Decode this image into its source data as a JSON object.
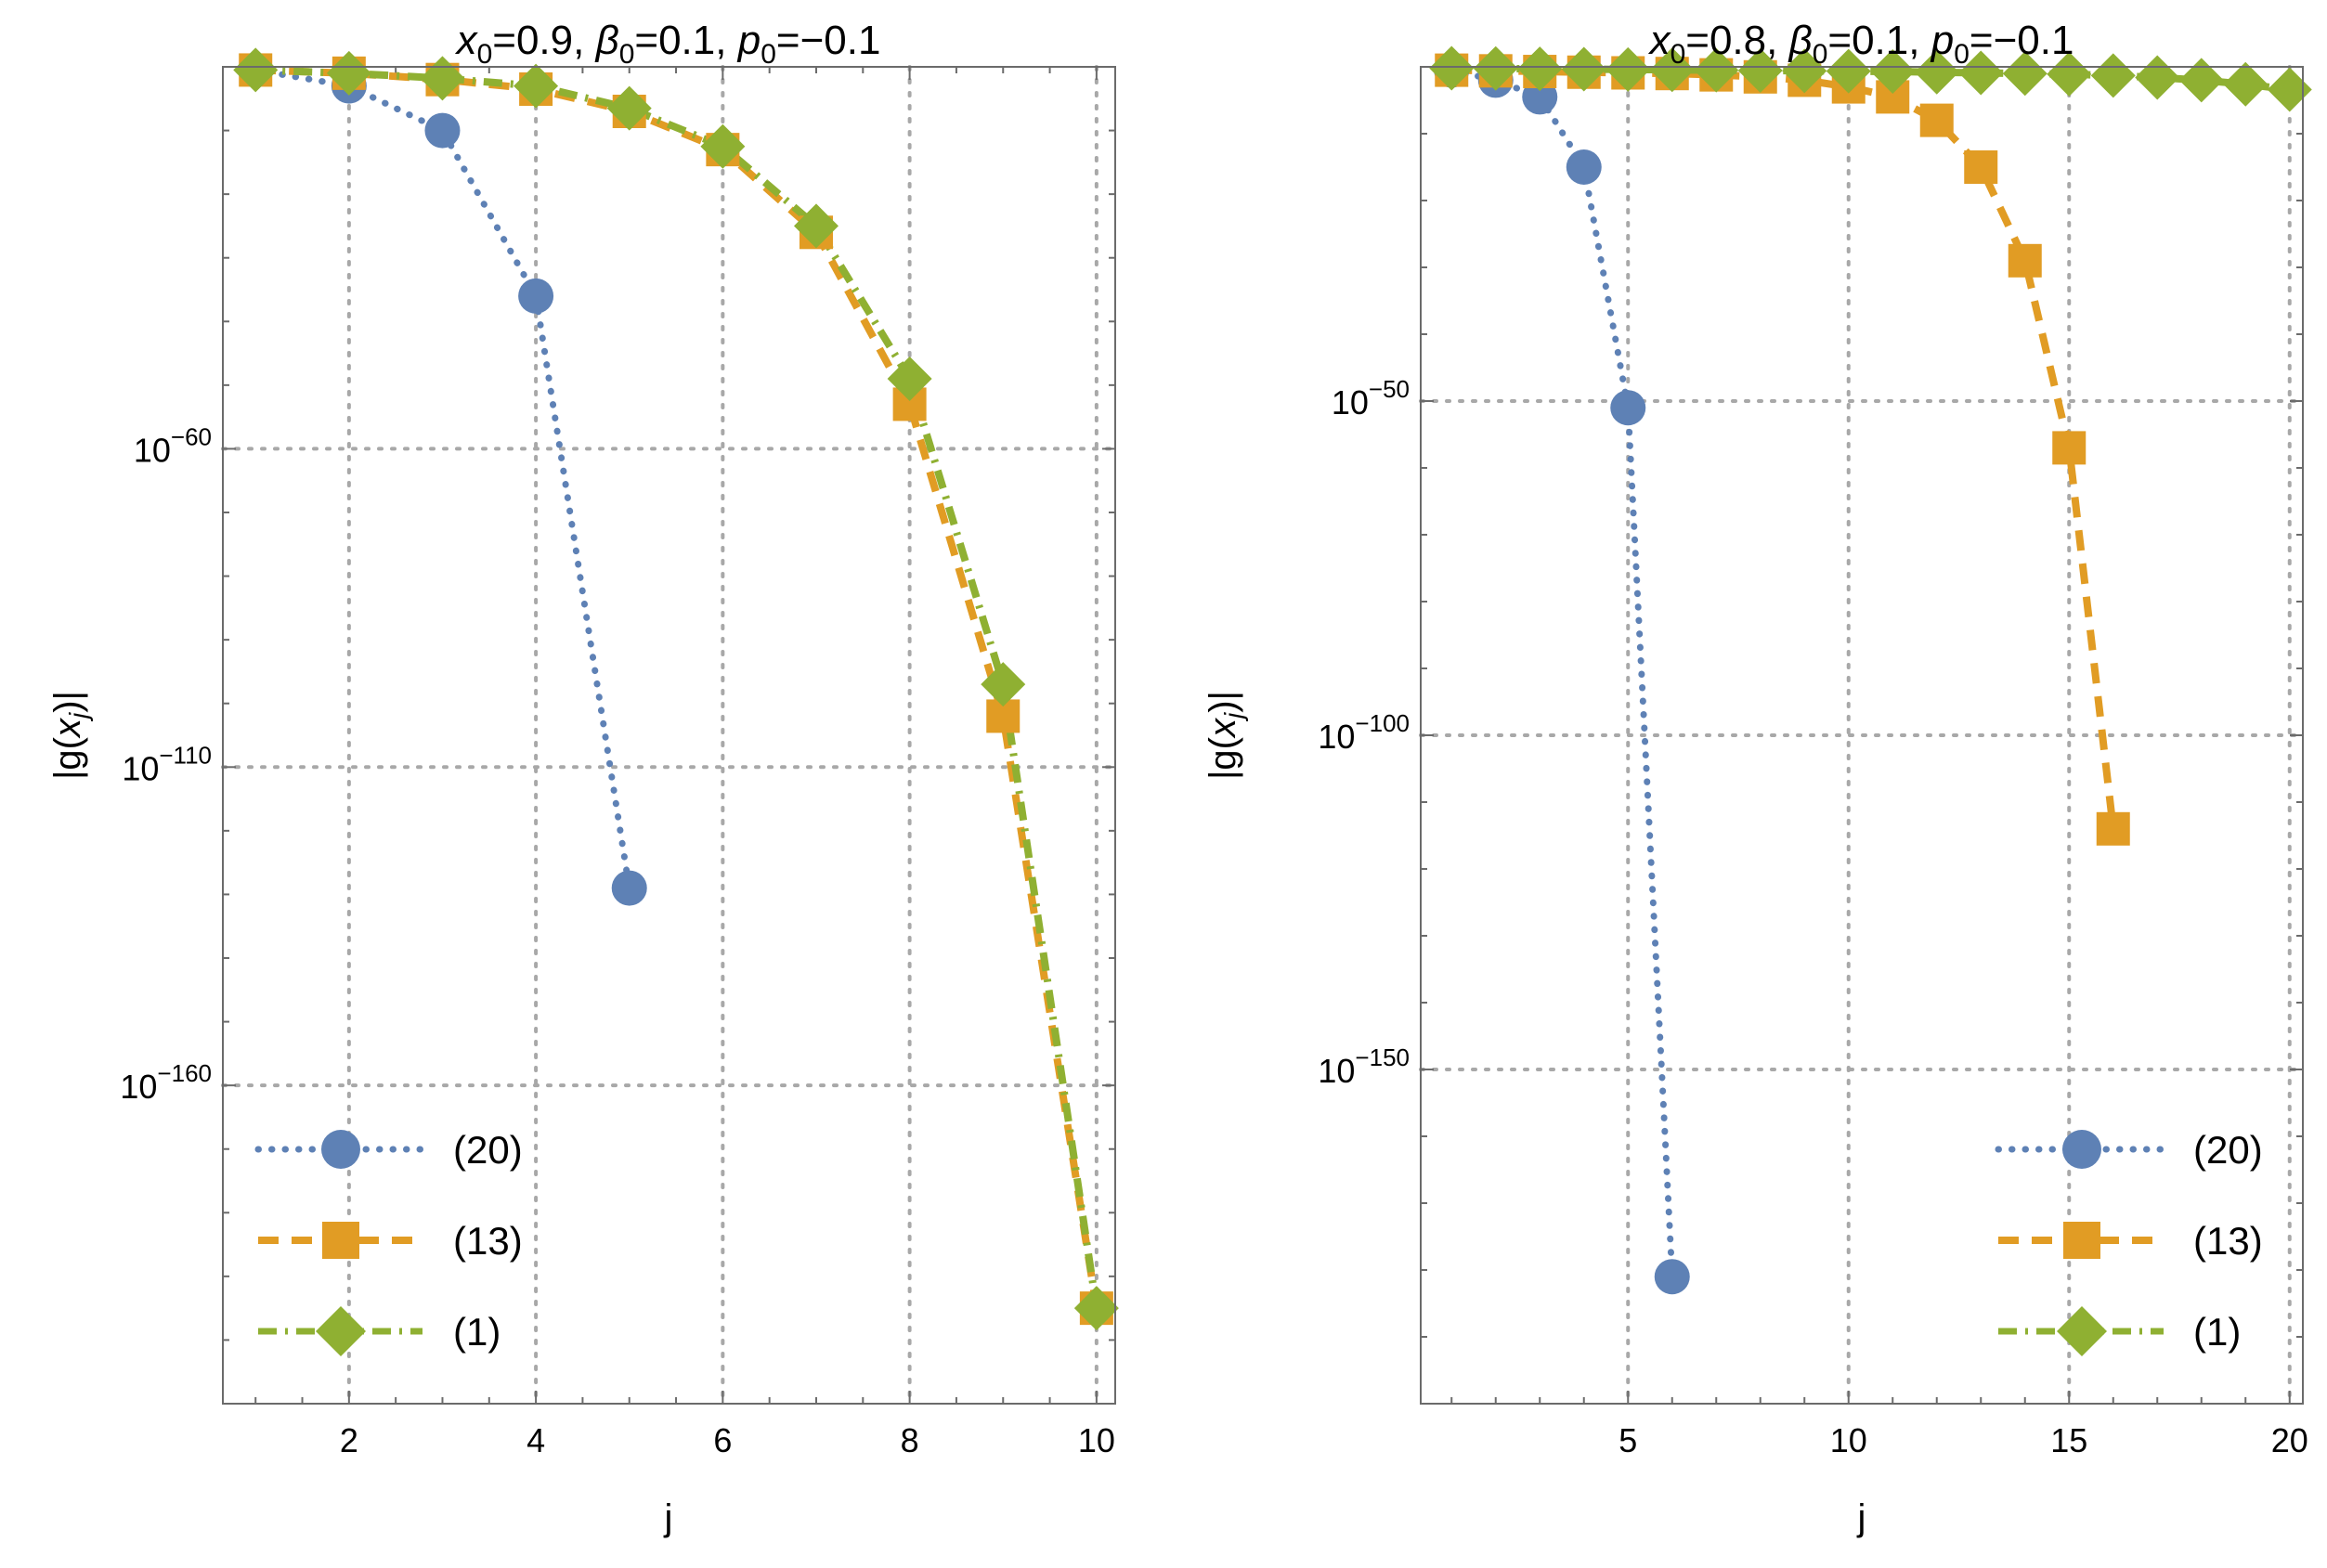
{
  "chart_data": [
    {
      "type": "line",
      "title": "x0=0.9, β0=0.1, p0=−0.1",
      "title_parts": {
        "x_sym": "x",
        "x_sub": "0",
        "x_val": "=0.9, ",
        "b_sym": "β",
        "b_sub": "0",
        "b_val": "=0.1, ",
        "p_sym": "p",
        "p_sub": "0",
        "p_val": "=−0.1"
      },
      "xlabel": "j",
      "ylabel": "|g(x_j)|",
      "ylabel_parts": {
        "pre": "|g(",
        "x": "x",
        "sub": "j",
        "post": ")|"
      },
      "scale": "log10",
      "xlim": [
        0.65,
        10.2
      ],
      "ylim_log10": [
        -210,
        0
      ],
      "x_ticks": [
        2,
        4,
        6,
        8,
        10
      ],
      "y_ticks_log10": [
        -60,
        -110,
        -160
      ],
      "y_tick_labels": [
        {
          "base": "10",
          "exp": "−60"
        },
        {
          "base": "10",
          "exp": "−110"
        },
        {
          "base": "10",
          "exp": "−160"
        }
      ],
      "legend_position": "bottom-left",
      "series": [
        {
          "name": "(20)",
          "color": "#5e81b5",
          "marker": "circle",
          "dash": "dotted",
          "x": [
            1,
            2,
            3,
            4,
            5
          ],
          "log10_y": [
            -0.5,
            -3,
            -10,
            -36,
            -129
          ]
        },
        {
          "name": "(13)",
          "color": "#e19c24",
          "marker": "square",
          "dash": "dashed",
          "x": [
            1,
            2,
            3,
            4,
            5,
            6,
            7,
            8,
            9,
            10
          ],
          "log10_y": [
            -0.5,
            -1,
            -2,
            -3.5,
            -7,
            -13,
            -26,
            -53,
            -102,
            -195
          ]
        },
        {
          "name": "(1)",
          "color": "#8fb032",
          "marker": "diamond",
          "dash": "dashdot",
          "x": [
            1,
            2,
            3,
            4,
            5,
            6,
            7,
            8,
            9,
            10
          ],
          "log10_y": [
            -0.5,
            -1,
            -1.8,
            -3,
            -6.5,
            -12.5,
            -25,
            -49,
            -97,
            -195
          ]
        }
      ]
    },
    {
      "type": "line",
      "title": "x0=0.8, β0=0.1, p0=−0.1",
      "title_parts": {
        "x_sym": "x",
        "x_sub": "0",
        "x_val": "=0.8, ",
        "b_sym": "β",
        "b_sub": "0",
        "b_val": "=0.1, ",
        "p_sym": "p",
        "p_sub": "0",
        "p_val": "=−0.1"
      },
      "xlabel": "j",
      "ylabel": "|g(x_j)|",
      "ylabel_parts": {
        "pre": "|g(",
        "x": "x",
        "sub": "j",
        "post": ")|"
      },
      "scale": "log10",
      "xlim": [
        0.3,
        20.3
      ],
      "ylim_log10": [
        -200,
        0
      ],
      "x_ticks": [
        5,
        10,
        15,
        20
      ],
      "y_ticks_log10": [
        -50,
        -100,
        -150
      ],
      "y_tick_labels": [
        {
          "base": "10",
          "exp": "−50"
        },
        {
          "base": "10",
          "exp": "−100"
        },
        {
          "base": "10",
          "exp": "−150"
        }
      ],
      "legend_position": "bottom-right",
      "series": [
        {
          "name": "(20)",
          "color": "#5e81b5",
          "marker": "circle",
          "dash": "dotted",
          "x": [
            1,
            2,
            3,
            4,
            5,
            6
          ],
          "log10_y": [
            -0.5,
            -2,
            -4.5,
            -15,
            -51,
            -181
          ]
        },
        {
          "name": "(13)",
          "color": "#e19c24",
          "marker": "square",
          "dash": "dashed",
          "x": [
            1,
            2,
            3,
            4,
            5,
            6,
            7,
            8,
            9,
            10,
            11,
            12,
            13,
            14,
            15,
            16
          ],
          "log10_y": [
            -0.5,
            -0.6,
            -0.7,
            -0.8,
            -0.9,
            -1,
            -1.2,
            -1.5,
            -2,
            -3,
            -4.5,
            -8,
            -15,
            -29,
            -57,
            -114
          ]
        },
        {
          "name": "(1)",
          "color": "#8fb032",
          "marker": "diamond",
          "dash": "dashdot",
          "x": [
            1,
            2,
            3,
            4,
            5,
            6,
            7,
            8,
            9,
            10,
            11,
            12,
            13,
            14,
            15,
            16,
            17,
            18,
            19,
            20
          ],
          "log10_y": [
            -0.2,
            -0.25,
            -0.3,
            -0.35,
            -0.4,
            -0.45,
            -0.5,
            -0.55,
            -0.6,
            -0.65,
            -0.7,
            -0.8,
            -0.9,
            -1,
            -1.1,
            -1.3,
            -1.6,
            -2,
            -2.6,
            -3.4
          ]
        }
      ]
    }
  ]
}
